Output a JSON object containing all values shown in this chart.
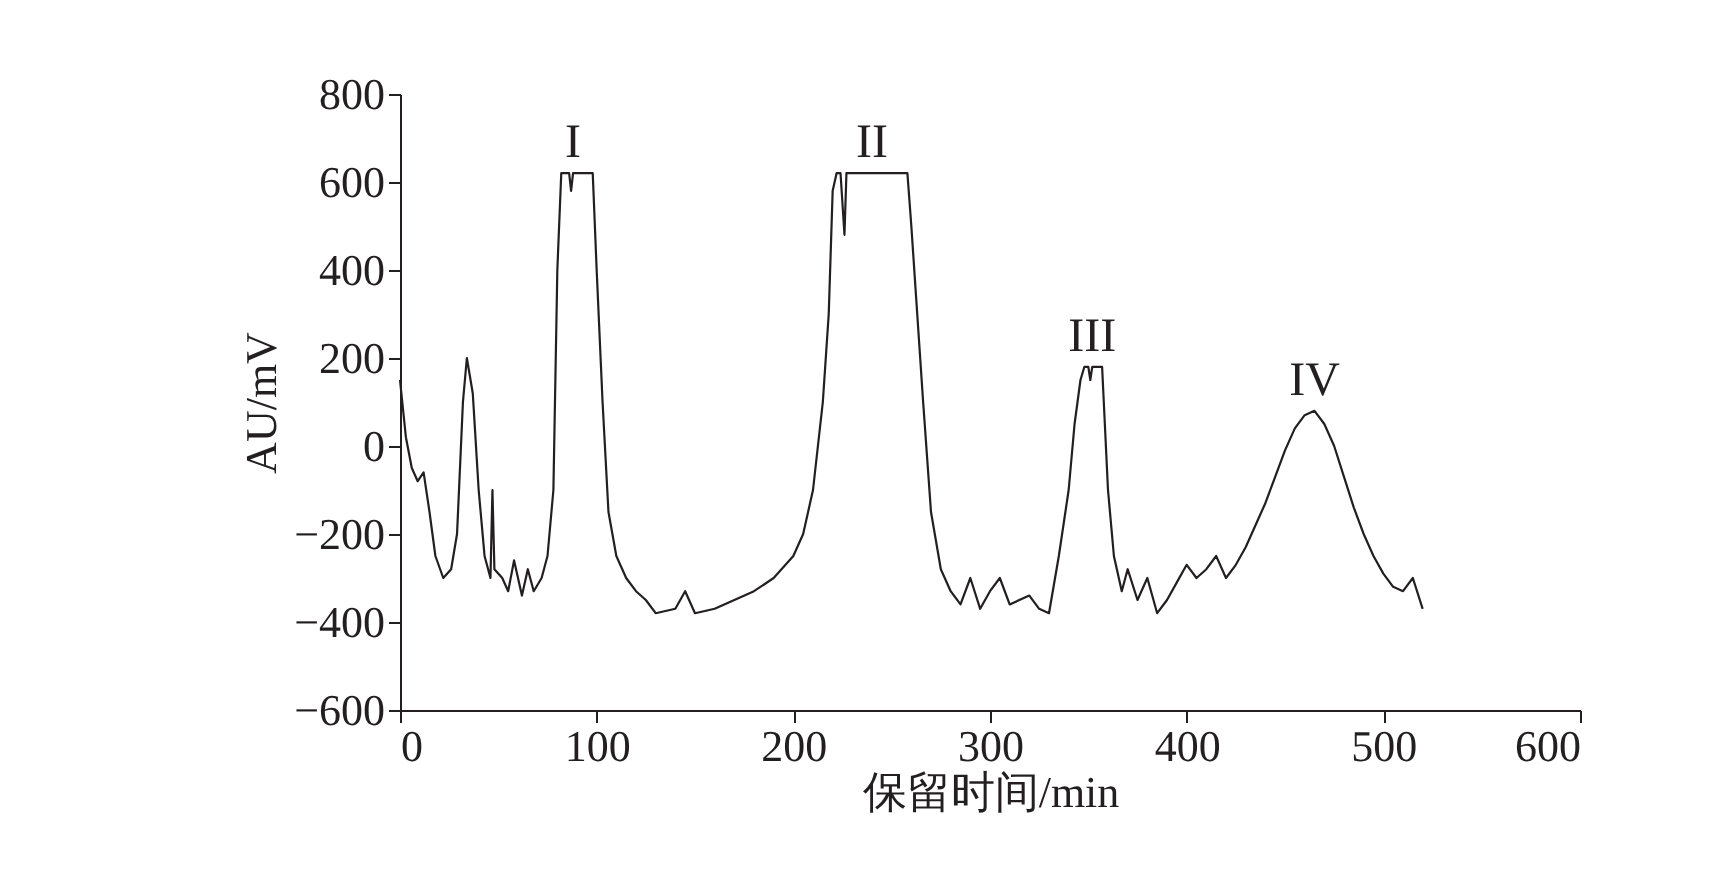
{
  "chart_data": {
    "type": "line",
    "xlabel": "保留时间/min",
    "ylabel": "AU/mV",
    "xlim": [
      0,
      600
    ],
    "ylim": [
      -600,
      800
    ],
    "xticks": [
      0,
      100,
      200,
      300,
      400,
      500,
      600
    ],
    "yticks": [
      -600,
      -400,
      -200,
      0,
      200,
      400,
      600,
      800
    ],
    "grid": false,
    "marker": "none",
    "line_style": "solid",
    "annotations": [
      {
        "text": "I",
        "x": 88,
        "y": 620
      },
      {
        "text": "II",
        "x": 240,
        "y": 620
      },
      {
        "text": "III",
        "x": 352,
        "y": 180
      },
      {
        "text": "IV",
        "x": 465,
        "y": 80
      }
    ],
    "series": [
      {
        "color": "#231f20",
        "x": [
          0,
          3,
          6,
          9,
          12,
          15,
          18,
          22,
          26,
          29,
          32,
          34,
          37,
          40,
          43,
          46,
          47,
          48,
          52,
          55,
          58,
          62,
          65,
          68,
          72,
          75,
          78,
          80,
          82,
          86,
          87,
          88,
          98,
          100,
          103,
          106,
          110,
          115,
          120,
          125,
          130,
          140,
          145,
          150,
          160,
          170,
          180,
          190,
          200,
          205,
          210,
          215,
          218,
          220,
          222,
          224,
          226,
          227,
          258,
          260,
          263,
          266,
          270,
          275,
          280,
          285,
          290,
          295,
          300,
          305,
          310,
          320,
          325,
          330,
          335,
          340,
          343,
          346,
          348,
          350,
          351,
          352,
          357,
          360,
          363,
          367,
          370,
          375,
          380,
          385,
          390,
          395,
          400,
          405,
          410,
          415,
          420,
          425,
          430,
          435,
          440,
          445,
          450,
          455,
          460,
          465,
          470,
          475,
          480,
          485,
          490,
          495,
          500,
          505,
          510,
          515,
          520
        ],
        "values": [
          150,
          20,
          -50,
          -80,
          -60,
          -150,
          -250,
          -300,
          -280,
          -200,
          100,
          200,
          120,
          -100,
          -250,
          -300,
          -100,
          -280,
          -300,
          -330,
          -260,
          -340,
          -280,
          -330,
          -300,
          -250,
          -100,
          400,
          620,
          620,
          580,
          620,
          620,
          400,
          100,
          -150,
          -250,
          -300,
          -330,
          -350,
          -380,
          -370,
          -330,
          -380,
          -370,
          -350,
          -330,
          -300,
          -250,
          -200,
          -100,
          100,
          300,
          580,
          620,
          620,
          480,
          620,
          620,
          500,
          300,
          100,
          -150,
          -280,
          -330,
          -360,
          -300,
          -370,
          -330,
          -300,
          -360,
          -340,
          -370,
          -380,
          -250,
          -100,
          50,
          150,
          180,
          180,
          150,
          180,
          180,
          -100,
          -250,
          -330,
          -280,
          -350,
          -300,
          -380,
          -350,
          -310,
          -270,
          -300,
          -280,
          -250,
          -300,
          -270,
          -230,
          -180,
          -130,
          -70,
          -10,
          40,
          70,
          80,
          50,
          0,
          -70,
          -140,
          -200,
          -250,
          -290,
          -320,
          -330,
          -300,
          -370
        ]
      }
    ]
  }
}
